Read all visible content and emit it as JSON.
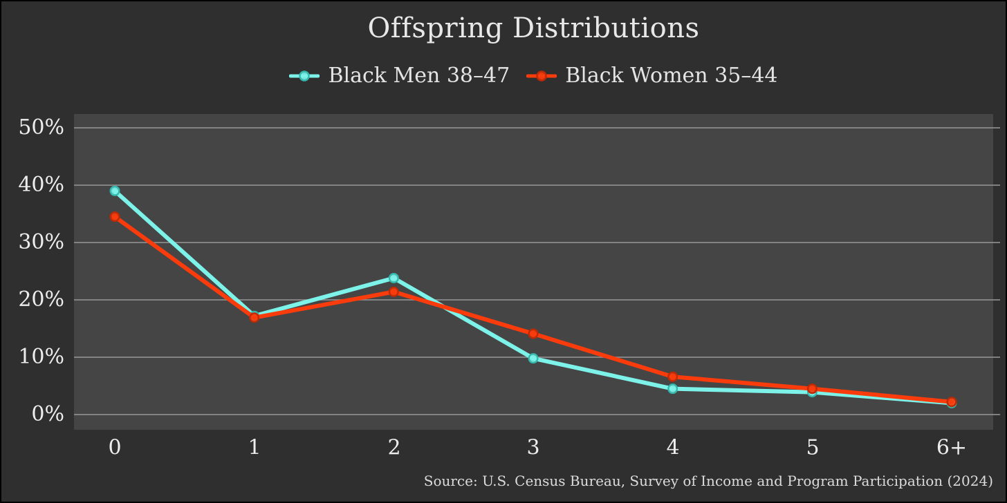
{
  "title": "Offspring Distributions",
  "footer": {
    "source_text": "Source: U.S. Census Bureau, Survey of Income and Program Participation (2024)"
  },
  "colors": {
    "background": "#2f2f30",
    "plot_background": "#454545",
    "gridline": "#8c8c8c",
    "text": "#e9e9e9",
    "frame": "#000000"
  },
  "chart_data": {
    "type": "line",
    "title": "Offspring Distributions",
    "xlabel": "",
    "ylabel": "",
    "categories": [
      "0",
      "1",
      "2",
      "3",
      "4",
      "5",
      "6+"
    ],
    "yticks_percent": [
      0,
      10,
      20,
      30,
      40,
      50
    ],
    "ytick_labels_top_down": [
      "50%",
      "40%",
      "30%",
      "20%",
      "10%",
      "0%"
    ],
    "ylim": [
      -2.5,
      52.5
    ],
    "grid": "horizontal",
    "legend_position": "top-center",
    "series": [
      {
        "name": "Black Men 38–47",
        "color": "#7df2e9",
        "marker_edge": "#35b9ae",
        "values": [
          39.0,
          17.2,
          23.8,
          9.8,
          4.5,
          3.9,
          2.0
        ]
      },
      {
        "name": "Black Women 35–44",
        "color": "#fa3c0d",
        "marker_edge": "#bf2a05",
        "values": [
          34.5,
          16.9,
          21.4,
          14.1,
          6.6,
          4.5,
          2.2
        ]
      }
    ]
  }
}
